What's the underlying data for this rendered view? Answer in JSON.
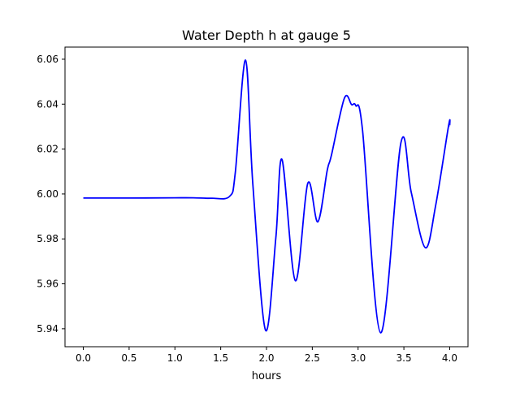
{
  "chart_data": {
    "type": "line",
    "title": "Water Depth h at gauge 5",
    "xlabel": "hours",
    "ylabel": "",
    "xlim": [
      -0.2,
      4.2
    ],
    "ylim": [
      5.932,
      6.0654
    ],
    "xticks": [
      0.0,
      0.5,
      1.0,
      1.5,
      2.0,
      2.5,
      3.0,
      3.5,
      4.0
    ],
    "xtick_labels": [
      "0.0",
      "0.5",
      "1.0",
      "1.5",
      "2.0",
      "2.5",
      "3.0",
      "3.5",
      "4.0"
    ],
    "yticks": [
      5.94,
      5.96,
      5.98,
      6.0,
      6.02,
      6.04,
      6.06
    ],
    "ytick_labels": [
      "5.94",
      "5.96",
      "5.98",
      "6.00",
      "6.02",
      "6.04",
      "6.06"
    ],
    "grid": false,
    "series": [
      {
        "name": "h",
        "color": "#0000ff",
        "x": [
          0.0,
          0.5,
          1.0,
          1.2,
          1.4,
          1.596,
          1.659,
          1.771,
          1.851,
          1.989,
          2.102,
          2.17,
          2.315,
          2.451,
          2.56,
          2.663,
          2.708,
          2.85,
          2.929,
          2.974,
          3.048,
          3.246,
          3.468,
          3.58,
          3.734,
          3.847,
          3.988,
          4.0
        ],
        "y": [
          5.9982,
          5.9982,
          5.9983,
          5.9983,
          5.9981,
          5.9989,
          6.0094,
          6.0596,
          6.0043,
          5.9394,
          5.9805,
          6.0153,
          5.9614,
          6.0048,
          5.9876,
          6.0105,
          6.0171,
          6.0426,
          6.0398,
          6.0394,
          6.0286,
          5.9382,
          6.0229,
          6.0008,
          5.9761,
          5.9949,
          6.0304,
          6.0304
        ]
      }
    ]
  }
}
